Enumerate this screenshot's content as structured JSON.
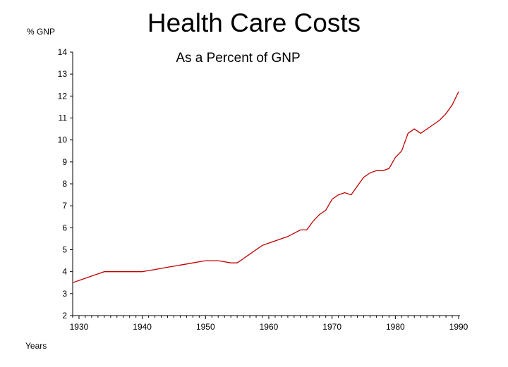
{
  "chart_data": {
    "type": "line",
    "title": "Health Care Costs",
    "subtitle": "As a Percent of GNP",
    "ylabel": "% GNP",
    "xlabel": "Years",
    "xlim": [
      1929,
      1990
    ],
    "ylim": [
      2,
      14
    ],
    "xticks": [
      1930,
      1940,
      1950,
      1960,
      1970,
      1980,
      1990
    ],
    "yticks": [
      2,
      3,
      4,
      5,
      6,
      7,
      8,
      9,
      10,
      11,
      12,
      13,
      14
    ],
    "grid": false,
    "line_color": "#c00000",
    "series": [
      {
        "x": [
          1929,
          1930,
          1931,
          1932,
          1933,
          1934,
          1935,
          1936,
          1937,
          1938,
          1939,
          1940,
          1941,
          1942,
          1943,
          1944,
          1945,
          1946,
          1947,
          1948,
          1949,
          1950,
          1951,
          1952,
          1953,
          1954,
          1955,
          1956,
          1957,
          1958,
          1959,
          1960,
          1961,
          1962,
          1963,
          1964,
          1965,
          1966,
          1967,
          1968,
          1969,
          1970,
          1971,
          1972,
          1973,
          1974,
          1975,
          1976,
          1977,
          1978,
          1979,
          1980,
          1981,
          1982,
          1983,
          1984,
          1985,
          1986,
          1987,
          1988,
          1989,
          1990
        ],
        "values": [
          3.5,
          3.6,
          3.7,
          3.8,
          3.9,
          4.0,
          4.0,
          4.0,
          4.0,
          4.0,
          4.0,
          4.0,
          4.05,
          4.1,
          4.15,
          4.2,
          4.25,
          4.3,
          4.35,
          4.4,
          4.45,
          4.5,
          4.5,
          4.5,
          4.45,
          4.4,
          4.4,
          4.6,
          4.8,
          5.0,
          5.2,
          5.3,
          5.4,
          5.5,
          5.6,
          5.75,
          5.9,
          5.9,
          6.3,
          6.6,
          6.8,
          7.3,
          7.5,
          7.6,
          7.5,
          7.9,
          8.3,
          8.5,
          8.6,
          8.6,
          8.7,
          9.2,
          9.5,
          10.3,
          10.5,
          10.3,
          10.5,
          10.7,
          10.9,
          11.2,
          11.6,
          12.2
        ]
      }
    ]
  }
}
